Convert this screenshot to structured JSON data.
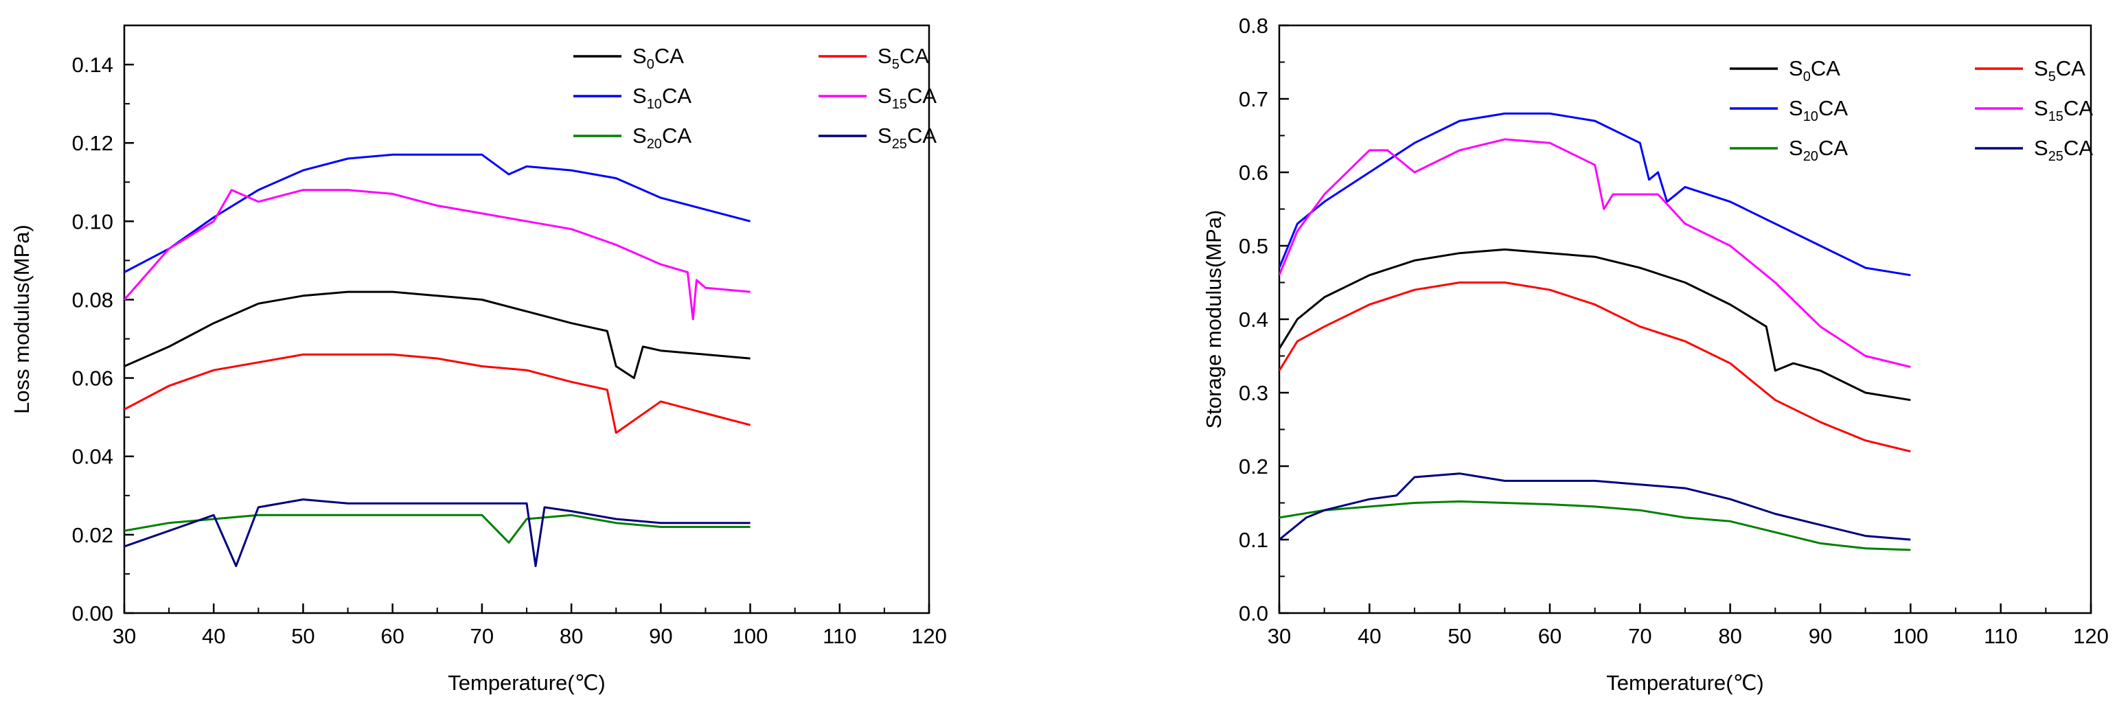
{
  "chart_data": [
    {
      "type": "line",
      "ylabel": "Loss modulus(MPa)",
      "xlabel": "Temperature(℃)",
      "xlim": [
        30,
        120
      ],
      "ylim": [
        0.0,
        0.15
      ],
      "xticks": [
        "30",
        "40",
        "50",
        "60",
        "70",
        "80",
        "90",
        "100",
        "110",
        "120"
      ],
      "yticks": [
        "0.00",
        "0.02",
        "0.04",
        "0.06",
        "0.08",
        "0.10",
        "0.12",
        "0.14"
      ],
      "legend_position": "top-right",
      "series": [
        {
          "name": "S0CA",
          "label_base": "S",
          "label_sub": "0",
          "label_rest": "CA",
          "color": "#000000",
          "x": [
            30,
            35,
            40,
            45,
            50,
            55,
            60,
            65,
            70,
            75,
            80,
            84,
            85,
            87,
            88,
            90,
            95,
            100
          ],
          "y": [
            0.063,
            0.068,
            0.074,
            0.079,
            0.081,
            0.082,
            0.082,
            0.081,
            0.08,
            0.077,
            0.074,
            0.072,
            0.063,
            0.06,
            0.068,
            0.067,
            0.066,
            0.065
          ]
        },
        {
          "name": "S5CA",
          "label_base": "S",
          "label_sub": "5",
          "label_rest": "CA",
          "color": "#ff0000",
          "x": [
            30,
            35,
            40,
            45,
            50,
            55,
            60,
            65,
            70,
            75,
            80,
            84,
            85,
            90,
            95,
            100
          ],
          "y": [
            0.052,
            0.058,
            0.062,
            0.064,
            0.066,
            0.066,
            0.066,
            0.065,
            0.063,
            0.062,
            0.059,
            0.057,
            0.046,
            0.054,
            0.051,
            0.048
          ]
        },
        {
          "name": "S10CA",
          "label_base": "S",
          "label_sub": "10",
          "label_rest": "CA",
          "color": "#0000ff",
          "x": [
            30,
            35,
            40,
            45,
            50,
            55,
            60,
            65,
            70,
            73,
            75,
            80,
            85,
            90,
            95,
            100
          ],
          "y": [
            0.087,
            0.093,
            0.101,
            0.108,
            0.113,
            0.116,
            0.117,
            0.117,
            0.117,
            0.112,
            0.114,
            0.113,
            0.111,
            0.106,
            0.103,
            0.1
          ]
        },
        {
          "name": "S15CA",
          "label_base": "S",
          "label_sub": "15",
          "label_rest": "CA",
          "color": "#ff00ff",
          "x": [
            30,
            35,
            40,
            42,
            45,
            50,
            55,
            60,
            65,
            70,
            75,
            80,
            85,
            90,
            93,
            93.6,
            94,
            95,
            100
          ],
          "y": [
            0.08,
            0.093,
            0.1,
            0.108,
            0.105,
            0.108,
            0.108,
            0.107,
            0.104,
            0.102,
            0.1,
            0.098,
            0.094,
            0.089,
            0.087,
            0.075,
            0.085,
            0.083,
            0.082
          ]
        },
        {
          "name": "S20CA",
          "label_base": "S",
          "label_sub": "20",
          "label_rest": "CA",
          "color": "#008000",
          "x": [
            30,
            35,
            40,
            45,
            50,
            55,
            60,
            65,
            70,
            73,
            75,
            80,
            85,
            90,
            95,
            100
          ],
          "y": [
            0.021,
            0.023,
            0.024,
            0.025,
            0.025,
            0.025,
            0.025,
            0.025,
            0.025,
            0.018,
            0.024,
            0.025,
            0.023,
            0.022,
            0.022,
            0.022
          ]
        },
        {
          "name": "S25CA",
          "label_base": "S",
          "label_sub": "25",
          "label_rest": "CA",
          "color": "#000080",
          "x": [
            30,
            35,
            40,
            42.5,
            45,
            50,
            55,
            60,
            65,
            70,
            75,
            76,
            77,
            80,
            85,
            90,
            95,
            100
          ],
          "y": [
            0.017,
            0.021,
            0.025,
            0.012,
            0.027,
            0.029,
            0.028,
            0.028,
            0.028,
            0.028,
            0.028,
            0.012,
            0.027,
            0.026,
            0.024,
            0.023,
            0.023,
            0.023
          ]
        }
      ]
    },
    {
      "type": "line",
      "ylabel": "Storage modulus(MPa)",
      "xlabel": "Temperature(℃)",
      "xlim": [
        30,
        120
      ],
      "ylim": [
        0.0,
        0.8
      ],
      "xticks": [
        "30",
        "40",
        "50",
        "60",
        "70",
        "80",
        "90",
        "100",
        "110",
        "120"
      ],
      "yticks": [
        "0.0",
        "0.1",
        "0.2",
        "0.3",
        "0.4",
        "0.5",
        "0.6",
        "0.7",
        "0.8"
      ],
      "legend_position": "top-right",
      "series": [
        {
          "name": "S0CA",
          "label_base": "S",
          "label_sub": "0",
          "label_rest": "CA",
          "color": "#000000",
          "x": [
            30,
            32,
            35,
            40,
            45,
            50,
            55,
            60,
            65,
            70,
            75,
            80,
            84,
            85,
            87,
            90,
            95,
            100
          ],
          "y": [
            0.36,
            0.4,
            0.43,
            0.46,
            0.48,
            0.49,
            0.495,
            0.49,
            0.485,
            0.47,
            0.45,
            0.42,
            0.39,
            0.33,
            0.34,
            0.33,
            0.3,
            0.29
          ]
        },
        {
          "name": "S5CA",
          "label_base": "S",
          "label_sub": "5",
          "label_rest": "CA",
          "color": "#ff0000",
          "x": [
            30,
            32,
            35,
            40,
            45,
            50,
            55,
            60,
            65,
            70,
            75,
            80,
            85,
            90,
            95,
            100
          ],
          "y": [
            0.33,
            0.37,
            0.39,
            0.42,
            0.44,
            0.45,
            0.45,
            0.44,
            0.42,
            0.39,
            0.37,
            0.34,
            0.29,
            0.26,
            0.235,
            0.22
          ]
        },
        {
          "name": "S10CA",
          "label_base": "S",
          "label_sub": "10",
          "label_rest": "CA",
          "color": "#0000ff",
          "x": [
            30,
            32,
            35,
            40,
            45,
            50,
            55,
            60,
            65,
            70,
            71,
            72,
            73,
            75,
            80,
            85,
            90,
            95,
            100
          ],
          "y": [
            0.47,
            0.53,
            0.56,
            0.6,
            0.64,
            0.67,
            0.68,
            0.68,
            0.67,
            0.64,
            0.59,
            0.6,
            0.56,
            0.58,
            0.56,
            0.53,
            0.5,
            0.47,
            0.46
          ]
        },
        {
          "name": "S15CA",
          "label_base": "S",
          "label_sub": "15",
          "label_rest": "CA",
          "color": "#ff00ff",
          "x": [
            30,
            32,
            35,
            40,
            42,
            45,
            50,
            55,
            60,
            65,
            66,
            67,
            70,
            72,
            75,
            80,
            85,
            90,
            95,
            100
          ],
          "y": [
            0.46,
            0.52,
            0.57,
            0.63,
            0.63,
            0.6,
            0.63,
            0.645,
            0.64,
            0.61,
            0.55,
            0.57,
            0.57,
            0.57,
            0.53,
            0.5,
            0.45,
            0.39,
            0.35,
            0.335
          ]
        },
        {
          "name": "S20CA",
          "label_base": "S",
          "label_sub": "20",
          "label_rest": "CA",
          "color": "#008000",
          "x": [
            30,
            35,
            40,
            45,
            50,
            55,
            60,
            65,
            70,
            75,
            80,
            85,
            90,
            95,
            100
          ],
          "y": [
            0.13,
            0.14,
            0.145,
            0.15,
            0.152,
            0.15,
            0.148,
            0.145,
            0.14,
            0.13,
            0.125,
            0.11,
            0.095,
            0.088,
            0.086
          ]
        },
        {
          "name": "S25CA",
          "label_base": "S",
          "label_sub": "25",
          "label_rest": "CA",
          "color": "#000080",
          "x": [
            30,
            33,
            35,
            40,
            43,
            45,
            50,
            55,
            60,
            65,
            70,
            75,
            80,
            85,
            90,
            95,
            100
          ],
          "y": [
            0.1,
            0.13,
            0.14,
            0.155,
            0.16,
            0.185,
            0.19,
            0.18,
            0.18,
            0.18,
            0.175,
            0.17,
            0.155,
            0.135,
            0.12,
            0.105,
            0.1
          ]
        }
      ]
    }
  ]
}
